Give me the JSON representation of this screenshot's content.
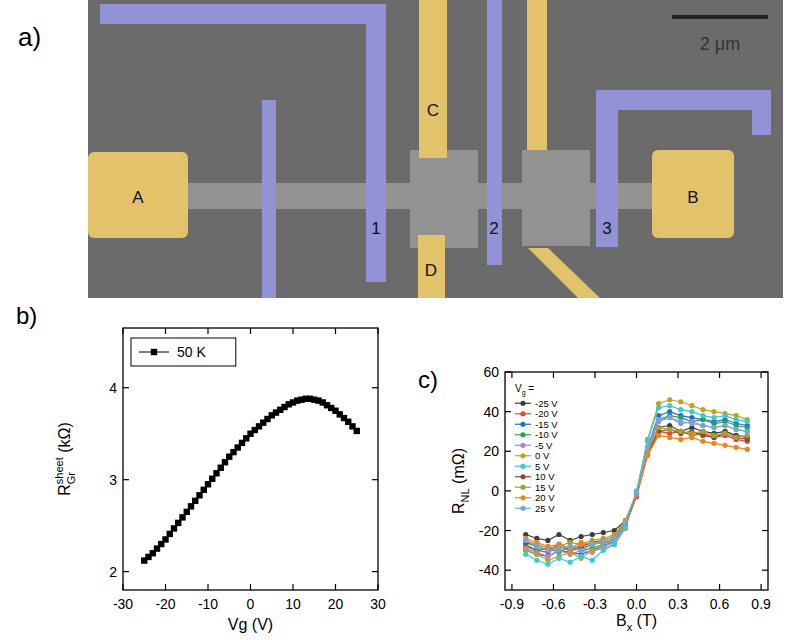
{
  "image": {
    "panel_label": "a)",
    "scale_bar": "2 μm",
    "labels": [
      "A",
      "1",
      "C",
      "D",
      "2",
      "3",
      "B"
    ]
  },
  "chart_data": [
    {
      "type": "line",
      "panel_label": "b)",
      "xlabel": "Vg (V)",
      "ylabel": {
        "text": "R",
        "sub": "Gr",
        "sup": "sheet",
        "after": " (kΩ)"
      },
      "x": [
        -25,
        -24,
        -23,
        -22,
        -21,
        -20,
        -19,
        -18,
        -17,
        -16,
        -15,
        -14,
        -13,
        -12,
        -11,
        -10,
        -9,
        -8,
        -7,
        -6,
        -5,
        -4,
        -3,
        -2,
        -1,
        0,
        1,
        2,
        3,
        4,
        5,
        6,
        7,
        8,
        9,
        10,
        11,
        12,
        13,
        14,
        15,
        16,
        17,
        18,
        19,
        20,
        21,
        22,
        23,
        24,
        25
      ],
      "series": [
        {
          "name": "50 K",
          "color": "#000000",
          "marker": "square",
          "line_style": "solid",
          "values": [
            2.12,
            2.16,
            2.2,
            2.25,
            2.3,
            2.35,
            2.41,
            2.47,
            2.53,
            2.59,
            2.65,
            2.71,
            2.77,
            2.83,
            2.89,
            2.95,
            3.01,
            3.07,
            3.13,
            3.19,
            3.25,
            3.3,
            3.35,
            3.4,
            3.45,
            3.5,
            3.54,
            3.58,
            3.62,
            3.66,
            3.7,
            3.73,
            3.76,
            3.79,
            3.82,
            3.84,
            3.86,
            3.87,
            3.88,
            3.88,
            3.87,
            3.86,
            3.84,
            3.81,
            3.78,
            3.75,
            3.71,
            3.67,
            3.63,
            3.58,
            3.53
          ]
        }
      ],
      "xlim": [
        -30,
        30
      ],
      "xticks": [
        -30,
        -20,
        -10,
        0,
        10,
        20,
        30
      ],
      "ylim": [
        1.8,
        4.65
      ],
      "yticks": [
        2,
        3,
        4
      ],
      "legend": "upper left",
      "grid": false
    },
    {
      "type": "line",
      "panel_label": "c)",
      "xlabel": {
        "text": "B",
        "sub": "x",
        "after": " (T)"
      },
      "ylabel": {
        "text": "R",
        "sub": "NL",
        "after": " (mΩ)"
      },
      "legend_title": {
        "text": "V",
        "sub": "g",
        "after": " ="
      },
      "x": [
        -0.8,
        -0.72,
        -0.64,
        -0.56,
        -0.48,
        -0.4,
        -0.32,
        -0.24,
        -0.16,
        -0.08,
        0,
        0.08,
        0.16,
        0.24,
        0.32,
        0.4,
        0.48,
        0.56,
        0.64,
        0.72,
        0.8
      ],
      "series": [
        {
          "name": "-25 V",
          "color": "#3d3d3d",
          "marker": "circle",
          "line_style": "solid",
          "values": [
            -22,
            -24,
            -25,
            -22,
            -25,
            -23,
            -22,
            -21,
            -20,
            -15,
            -2,
            20,
            32,
            33,
            30,
            32,
            30,
            29,
            30,
            28,
            27
          ]
        },
        {
          "name": "-20 V",
          "color": "#e8413a",
          "marker": "circle",
          "line_style": "solid",
          "values": [
            -28,
            -30,
            -31,
            -28,
            -30,
            -29,
            -27,
            -26,
            -24,
            -17,
            -3,
            18,
            30,
            29,
            30,
            28,
            29,
            27,
            28,
            26,
            25
          ]
        },
        {
          "name": "-15 V",
          "color": "#1f6fd6",
          "marker": "circle",
          "line_style": "solid",
          "values": [
            -30,
            -32,
            -33,
            -30,
            -31,
            -32,
            -30,
            -28,
            -25,
            -18,
            -2,
            22,
            38,
            40,
            38,
            37,
            36,
            35,
            36,
            34,
            33
          ]
        },
        {
          "name": "-10 V",
          "color": "#2ca04c",
          "marker": "circle",
          "line_style": "solid",
          "values": [
            -27,
            -30,
            -29,
            -31,
            -28,
            -30,
            -29,
            -27,
            -24,
            -16,
            -1,
            21,
            36,
            38,
            37,
            35,
            36,
            34,
            35,
            33,
            32
          ]
        },
        {
          "name": "-5 V",
          "color": "#b07fe0",
          "marker": "circle",
          "line_style": "solid",
          "values": [
            -29,
            -31,
            -33,
            -30,
            -32,
            -30,
            -31,
            -28,
            -26,
            -17,
            -2,
            20,
            35,
            37,
            34,
            35,
            33,
            32,
            33,
            31,
            30
          ]
        },
        {
          "name": "0 V",
          "color": "#c2a21c",
          "marker": "circle",
          "line_style": "solid",
          "values": [
            -30,
            -32,
            -35,
            -33,
            -31,
            -34,
            -30,
            -29,
            -27,
            -19,
            -1,
            26,
            44,
            46,
            45,
            43,
            41,
            40,
            39,
            38,
            36
          ]
        },
        {
          "name": "5 V",
          "color": "#33ccdd",
          "marker": "circle",
          "line_style": "solid",
          "values": [
            -32,
            -35,
            -37,
            -34,
            -36,
            -33,
            -35,
            -30,
            -27,
            -18,
            0,
            25,
            42,
            43,
            41,
            40,
            38,
            37,
            38,
            36,
            35
          ]
        },
        {
          "name": "10 V",
          "color": "#8b4a3a",
          "marker": "circle",
          "line_style": "solid",
          "values": [
            -26,
            -28,
            -30,
            -27,
            -29,
            -28,
            -26,
            -25,
            -23,
            -16,
            -2,
            19,
            30,
            31,
            29,
            30,
            28,
            27,
            29,
            27,
            26
          ]
        },
        {
          "name": "15 V",
          "color": "#a3a528",
          "marker": "circle",
          "line_style": "solid",
          "values": [
            -25,
            -27,
            -29,
            -28,
            -26,
            -27,
            -25,
            -24,
            -22,
            -15,
            -1,
            20,
            32,
            31,
            30,
            29,
            30,
            28,
            29,
            27,
            28
          ]
        },
        {
          "name": "20 V",
          "color": "#ff7f0e",
          "marker": "circle",
          "line_style": "solid",
          "values": [
            -24,
            -26,
            -28,
            -27,
            -29,
            -26,
            -27,
            -25,
            -23,
            -15,
            -2,
            18,
            28,
            27,
            26,
            27,
            25,
            24,
            23,
            22,
            21
          ]
        },
        {
          "name": "25 V",
          "color": "#6fa8dc",
          "marker": "circle",
          "line_style": "solid",
          "values": [
            -25,
            -28,
            -30,
            -29,
            -28,
            -30,
            -27,
            -26,
            -24,
            -16,
            -1,
            22,
            36,
            37,
            35,
            34,
            33,
            32,
            33,
            31,
            30
          ]
        }
      ],
      "xlim": [
        -0.95,
        0.95
      ],
      "xticks": [
        -0.9,
        -0.6,
        -0.3,
        {
          "value": 0,
          "label": "0.0"
        },
        0.3,
        0.6,
        0.9
      ],
      "ylim": [
        -50,
        60
      ],
      "yticks": [
        -40,
        -20,
        0,
        20,
        40,
        60
      ],
      "legend": "upper left",
      "grid": false
    }
  ]
}
